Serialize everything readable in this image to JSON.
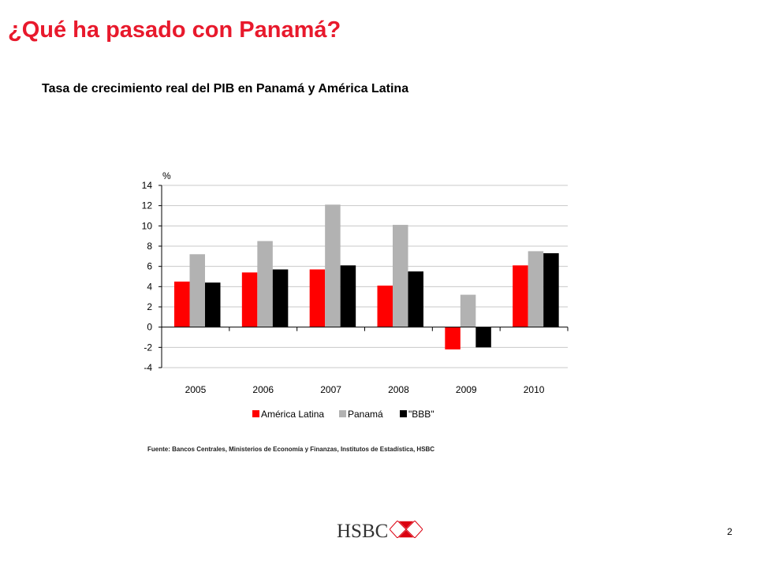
{
  "slide": {
    "title": "¿Qué ha pasado con Panamá?",
    "chart_heading": "Tasa de crecimiento real del PIB en Panamá y América Latina",
    "source": "Fuente: Bancos Centrales, Ministerios de Economía y Finanzas, Institutos de Estadística, HSBC",
    "page_number": "2",
    "logo_text": "HSBC",
    "logo_mark_colors": {
      "red": "#db0011",
      "white": "#ffffff"
    }
  },
  "chart_data": {
    "type": "bar",
    "title": "",
    "xlabel": "",
    "ylabel": "%",
    "categories": [
      "2005",
      "2006",
      "2007",
      "2008",
      "2009",
      "2010"
    ],
    "ylim": [
      -4,
      14
    ],
    "yticks": [
      14,
      12,
      10,
      8,
      6,
      4,
      2,
      0,
      -2,
      -4
    ],
    "grid": true,
    "legend_position": "bottom",
    "series": [
      {
        "name": "América Latina",
        "color": "#ff0000",
        "values": [
          4.5,
          5.4,
          5.7,
          4.1,
          -2.2,
          6.1
        ]
      },
      {
        "name": "Panamá",
        "color": "#b2b2b2",
        "values": [
          7.2,
          8.5,
          12.1,
          10.1,
          3.2,
          7.5
        ]
      },
      {
        "name": "\"BBB\"",
        "color": "#000000",
        "values": [
          4.4,
          5.7,
          6.1,
          5.5,
          -2.0,
          7.3
        ]
      }
    ]
  }
}
